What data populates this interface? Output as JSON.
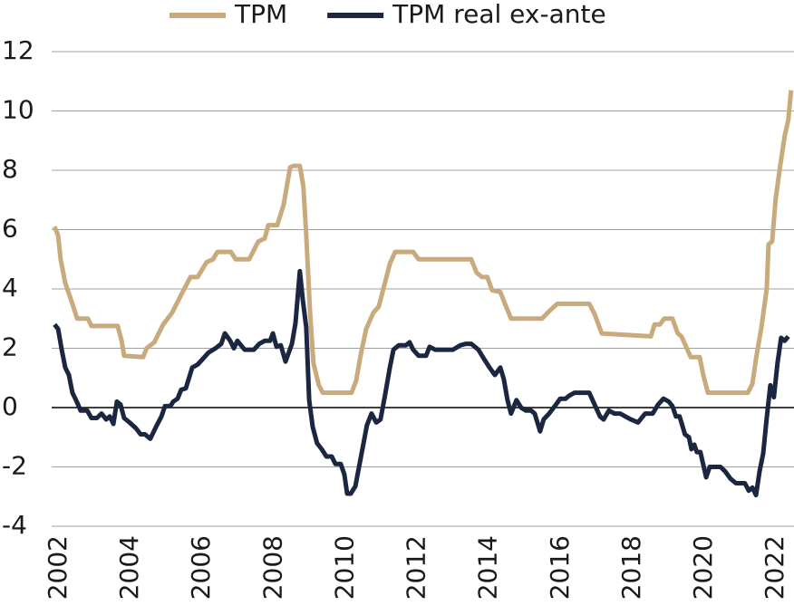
{
  "chart_data": {
    "type": "line",
    "xlim": [
      2001.8,
      2022.5
    ],
    "xticks": [
      2002,
      2004,
      2006,
      2008,
      2010,
      2012,
      2014,
      2016,
      2018,
      2020,
      2022
    ],
    "ylim": [
      -4,
      12
    ],
    "yticks": [
      -4,
      -2,
      0,
      2,
      4,
      6,
      8,
      10,
      12
    ],
    "grid": true,
    "legend": "top",
    "series": [
      {
        "name": "TPM",
        "color": "#c8aa7d",
        "x": [
          2001.88,
          2001.98,
          2002.05,
          2002.18,
          2002.38,
          2002.51,
          2002.81,
          2002.91,
          2003.64,
          2003.75,
          2003.82,
          2004.35,
          2004.45,
          2004.66,
          2004.91,
          2005.16,
          2005.41,
          2005.67,
          2005.87,
          2006.12,
          2006.3,
          2006.42,
          2006.8,
          2006.93,
          2007.31,
          2007.56,
          2007.74,
          2007.84,
          2008.09,
          2008.27,
          2008.45,
          2008.55,
          2008.72,
          2008.82,
          2008.9,
          2009.0,
          2009.1,
          2009.25,
          2009.36,
          2010.16,
          2010.29,
          2010.42,
          2010.57,
          2010.77,
          2010.92,
          2011.07,
          2011.23,
          2011.38,
          2011.88,
          2012.03,
          2013.5,
          2013.65,
          2013.8,
          2013.95,
          2014.08,
          2014.31,
          2014.44,
          2014.61,
          2015.47,
          2015.67,
          2015.9,
          2016.79,
          2016.94,
          2017.14,
          2018.51,
          2018.61,
          2018.76,
          2018.88,
          2019.11,
          2019.26,
          2019.36,
          2019.51,
          2019.62,
          2019.87,
          2019.97,
          2020.1,
          2021.21,
          2021.34,
          2021.44,
          2021.59,
          2021.74,
          2021.79,
          2021.89,
          2021.99,
          2022.12,
          2022.24,
          2022.34,
          2022.42
        ],
        "values": [
          6.1,
          5.8,
          5.0,
          4.2,
          3.5,
          3.0,
          3.0,
          2.75,
          2.75,
          2.25,
          1.75,
          1.7,
          2.0,
          2.2,
          2.8,
          3.2,
          3.8,
          4.4,
          4.4,
          4.9,
          5.0,
          5.25,
          5.25,
          5.0,
          5.0,
          5.6,
          5.7,
          6.15,
          6.15,
          6.85,
          8.1,
          8.15,
          8.15,
          7.45,
          5.8,
          3.3,
          1.5,
          0.75,
          0.5,
          0.5,
          0.9,
          1.8,
          2.65,
          3.2,
          3.4,
          4.1,
          4.85,
          5.25,
          5.25,
          5.0,
          5.0,
          4.55,
          4.4,
          4.4,
          3.95,
          3.9,
          3.5,
          3.0,
          3.0,
          3.25,
          3.5,
          3.5,
          3.15,
          2.5,
          2.4,
          2.8,
          2.8,
          3.0,
          3.0,
          2.5,
          2.4,
          2.0,
          1.7,
          1.7,
          1.1,
          0.5,
          0.5,
          0.8,
          1.65,
          2.7,
          4.0,
          5.5,
          5.6,
          7.05,
          8.2,
          9.15,
          9.7,
          10.7
        ]
      },
      {
        "name": "TPM real ex-ante",
        "color": "#1b2640",
        "x": [
          2001.88,
          2001.98,
          2002.08,
          2002.18,
          2002.28,
          2002.38,
          2002.48,
          2002.61,
          2002.79,
          2002.91,
          2003.06,
          2003.19,
          2003.32,
          2003.42,
          2003.52,
          2003.62,
          2003.72,
          2003.82,
          2003.97,
          2004.15,
          2004.28,
          2004.4,
          2004.55,
          2004.71,
          2004.86,
          2004.96,
          2005.11,
          2005.19,
          2005.31,
          2005.41,
          2005.54,
          2005.72,
          2005.87,
          2006.02,
          2006.17,
          2006.37,
          2006.53,
          2006.63,
          2006.78,
          2006.88,
          2006.98,
          2007.18,
          2007.44,
          2007.59,
          2007.74,
          2007.89,
          2007.97,
          2008.07,
          2008.19,
          2008.32,
          2008.5,
          2008.6,
          2008.72,
          2008.8,
          2008.9,
          2008.98,
          2009.08,
          2009.2,
          2009.33,
          2009.46,
          2009.61,
          2009.71,
          2009.86,
          2009.96,
          2010.04,
          2010.14,
          2010.27,
          2010.37,
          2010.49,
          2010.59,
          2010.72,
          2010.85,
          2010.97,
          2011.1,
          2011.23,
          2011.33,
          2011.48,
          2011.68,
          2011.78,
          2011.88,
          2012.03,
          2012.24,
          2012.34,
          2012.49,
          2012.99,
          2013.2,
          2013.35,
          2013.5,
          2013.7,
          2013.85,
          2014.01,
          2014.16,
          2014.31,
          2014.41,
          2014.51,
          2014.61,
          2014.76,
          2014.89,
          2015.02,
          2015.17,
          2015.27,
          2015.42,
          2015.52,
          2015.67,
          2015.83,
          2015.98,
          2016.13,
          2016.23,
          2016.38,
          2016.79,
          2016.94,
          2017.09,
          2017.19,
          2017.34,
          2017.49,
          2017.65,
          2017.8,
          2017.95,
          2018.15,
          2018.35,
          2018.56,
          2018.71,
          2018.86,
          2019.01,
          2019.11,
          2019.21,
          2019.31,
          2019.46,
          2019.57,
          2019.64,
          2019.72,
          2019.79,
          2019.89,
          2020.05,
          2020.15,
          2020.45,
          2020.58,
          2020.73,
          2020.88,
          2021.13,
          2021.24,
          2021.34,
          2021.44,
          2021.54,
          2021.64,
          2021.74,
          2021.84,
          2021.94,
          2022.04,
          2022.14,
          2022.24,
          2022.34
        ],
        "values": [
          2.8,
          2.65,
          1.95,
          1.35,
          1.1,
          0.5,
          0.25,
          -0.1,
          -0.1,
          -0.35,
          -0.35,
          -0.2,
          -0.4,
          -0.3,
          -0.55,
          0.2,
          0.1,
          -0.35,
          -0.5,
          -0.7,
          -0.9,
          -0.9,
          -1.05,
          -0.65,
          -0.3,
          0.05,
          0.05,
          0.2,
          0.3,
          0.6,
          0.65,
          1.35,
          1.45,
          1.65,
          1.85,
          2.0,
          2.15,
          2.5,
          2.25,
          2.0,
          2.25,
          1.95,
          1.95,
          2.15,
          2.25,
          2.25,
          2.5,
          2.05,
          2.1,
          1.55,
          2.15,
          2.85,
          4.6,
          3.65,
          2.7,
          0.25,
          -0.65,
          -1.2,
          -1.4,
          -1.65,
          -1.65,
          -1.9,
          -1.9,
          -2.25,
          -2.9,
          -2.9,
          -2.65,
          -2.0,
          -1.25,
          -0.6,
          -0.2,
          -0.5,
          -0.4,
          0.45,
          1.35,
          1.95,
          2.1,
          2.1,
          2.2,
          1.95,
          1.75,
          1.75,
          2.05,
          1.95,
          1.95,
          2.1,
          2.15,
          2.15,
          1.95,
          1.65,
          1.35,
          1.1,
          1.35,
          0.95,
          0.25,
          -0.2,
          0.25,
          0.0,
          -0.1,
          -0.1,
          -0.2,
          -0.8,
          -0.4,
          -0.2,
          0.05,
          0.3,
          0.3,
          0.4,
          0.5,
          0.5,
          0.1,
          -0.3,
          -0.4,
          -0.1,
          -0.2,
          -0.2,
          -0.3,
          -0.4,
          -0.5,
          -0.2,
          -0.2,
          0.1,
          0.3,
          0.2,
          0.05,
          -0.3,
          -0.3,
          -0.9,
          -1.0,
          -1.4,
          -1.25,
          -1.5,
          -1.5,
          -2.35,
          -2.0,
          -2.0,
          -2.15,
          -2.4,
          -2.55,
          -2.55,
          -2.8,
          -2.7,
          -2.95,
          -2.15,
          -1.55,
          -0.35,
          0.75,
          0.35,
          1.5,
          2.35,
          2.25,
          2.4
        ]
      }
    ]
  }
}
